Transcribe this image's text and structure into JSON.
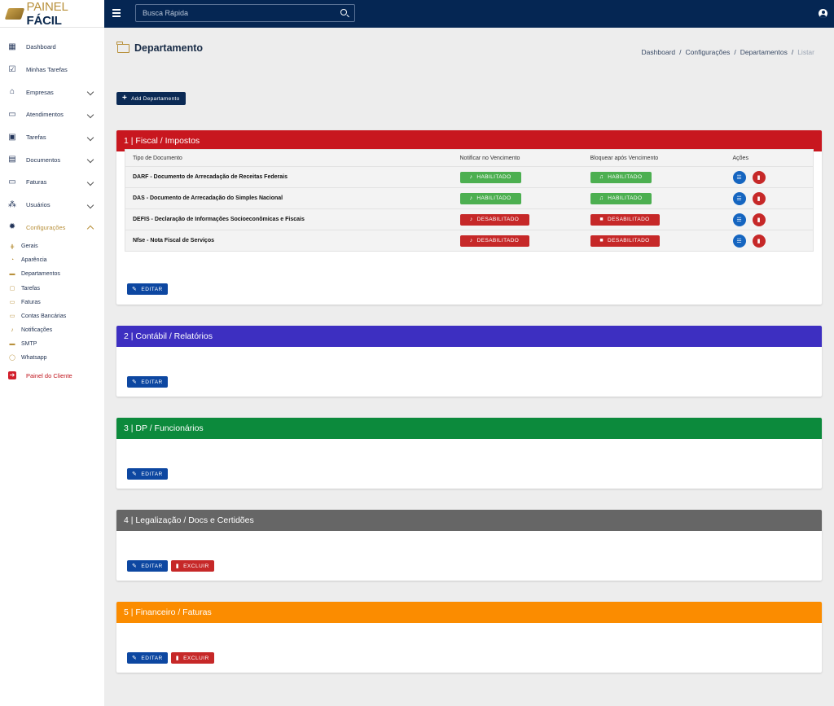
{
  "brand": {
    "part1": "PAINEL",
    "part2": "FÁCIL"
  },
  "search": {
    "placeholder": "Busca Rápida"
  },
  "sidebar": {
    "items": [
      {
        "label": "Dashboard",
        "icon": "dashboard-icon"
      },
      {
        "label": "Minhas Tarefas",
        "icon": "calendar-check-icon"
      },
      {
        "label": "Empresas",
        "icon": "bank-icon"
      },
      {
        "label": "Atendimentos",
        "icon": "chat-icon"
      },
      {
        "label": "Tarefas",
        "icon": "calendar-icon"
      },
      {
        "label": "Documentos",
        "icon": "document-icon"
      },
      {
        "label": "Faturas",
        "icon": "money-icon"
      },
      {
        "label": "Usuários",
        "icon": "users-icon"
      },
      {
        "label": "Configurações",
        "icon": "gear-icon"
      }
    ],
    "subitems": [
      "Gerais",
      "Aparência",
      "Departamentos",
      "Tarefas",
      "Faturas",
      "Contas Bancárias",
      "Notificações",
      "SMTP",
      "Whatsapp"
    ],
    "client_panel": "Painel do Cliente"
  },
  "page": {
    "title": "Departamento",
    "breadcrumb": [
      "Dashboard",
      "Configurações",
      "Departamentos",
      "Listar"
    ],
    "add_button": "Add Departamento"
  },
  "labels": {
    "edit": "EDITAR",
    "delete": "EXCLUIR",
    "enabled": "HABILITADO",
    "disabled": "DESABILITADO"
  },
  "table": {
    "headers": [
      "Tipo de Documento",
      "Notificar no Vencimento",
      "Bloquear após Vencimento",
      "Ações"
    ],
    "rows": [
      {
        "name": "DARF - Documento de Arrecadação de Receitas Federais",
        "notify": "HABILITADO",
        "block": "HABILITADO"
      },
      {
        "name": "DAS - Documento de Arrecadação do Simples Nacional",
        "notify": "HABILITADO",
        "block": "HABILITADO"
      },
      {
        "name": "DEFIS - Declaração de Informações Socioeconômicas e Fiscais",
        "notify": "DESABILITADO",
        "block": "DESABILITADO"
      },
      {
        "name": "Nfse - Nota Fiscal de Serviços",
        "notify": "DESABILITADO",
        "block": "DESABILITADO"
      }
    ]
  },
  "departments": [
    {
      "title": "1 | Fiscal / Impostos",
      "color": "#c8171f"
    },
    {
      "title": "2 | Contábil / Relatórios",
      "color": "#3d2fc1"
    },
    {
      "title": "3 | DP / Funcionários",
      "color": "#0c8a3c"
    },
    {
      "title": "4 | Legalização / Docs e Certidões",
      "color": "#666666"
    },
    {
      "title": "5 | Financeiro / Faturas",
      "color": "#fb8c00"
    }
  ],
  "colors": {
    "navy": "#052653",
    "gold": "#b8903b",
    "green": "#4caf50",
    "red": "#c62828",
    "blue": "#0d47a1"
  }
}
